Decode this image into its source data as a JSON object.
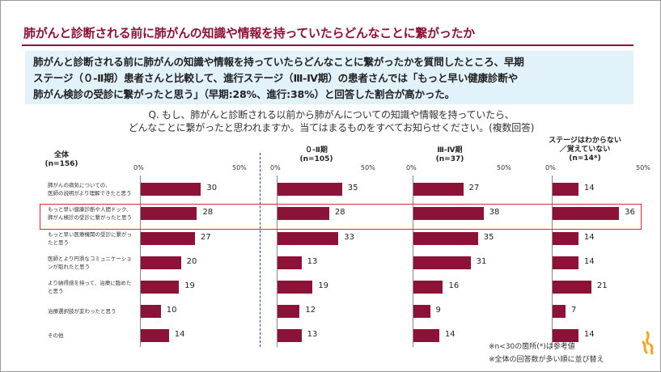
{
  "title": "肺がんと診断される前に肺がんの知識や情報を持っていたらどんなことに繋がったか",
  "summary": [
    "肺がんと診断される前に肺がんの知識や情報を持っていたらどんなことに繋がったかを質問したところ、早期",
    "ステージ（０-Ⅱ期）患者さんと比較して、進行ステージ（Ⅲ-Ⅳ期）の患者さんでは「もっと早い健康診断や",
    "肺がん検診の受診に繋がったと思う」（早期:28%、進行:38%）と回答した割合が高かった。"
  ],
  "question": [
    "Q. もし、肺がんと診断される以前から肺がんについての知識や情報を持っていたら、",
    "どんなことに繋がったと思われますか。当てはまるものをすべてお知らせください。(複数回答)"
  ],
  "notes": [
    "※n<30の箇所(*)は参考値",
    "※全体の回答数が多い順に並び替え"
  ],
  "colors": {
    "bar": "#8c1238",
    "title": "#8c1238",
    "summary_bg": "#e1f2fa",
    "highlight": "#d92b2b"
  },
  "chart_data": {
    "type": "bar",
    "orientation": "horizontal",
    "axis_ticks": [
      "0%",
      "50%"
    ],
    "xlim": [
      0,
      50
    ],
    "categories": [
      [
        "肺がんの病気についての、",
        "医師の説明がより理解できたと思う"
      ],
      [
        "もっと早い健康診断や人間ドック、",
        "肺がん検診の受診に繋がったと思う"
      ],
      [
        "もっと早い医療機関の受診に繋がっ",
        "たと思う"
      ],
      [
        "医師とより円滑なコミュニケーショ",
        "ンが取れたと思う"
      ],
      [
        "より納得感を持って、治療に臨めた",
        "と思う"
      ],
      [
        "治療選択肢が変わったと思う"
      ],
      [
        "その他"
      ]
    ],
    "highlighted_category": 1,
    "series": [
      {
        "name": [
          "全体",
          "(n=156)"
        ],
        "values": [
          30,
          28,
          27,
          20,
          19,
          10,
          14
        ]
      },
      {
        "name": [
          "０-Ⅱ期",
          "(n=105)"
        ],
        "values": [
          35,
          28,
          33,
          13,
          19,
          12,
          13
        ]
      },
      {
        "name": [
          "Ⅲ-Ⅳ期",
          "(n=37)"
        ],
        "values": [
          27,
          38,
          35,
          31,
          16,
          9,
          14
        ]
      },
      {
        "name": [
          "ステージはわからない",
          "／覚えていない",
          "(n=14*)"
        ],
        "values": [
          14,
          36,
          14,
          14,
          21,
          7,
          14
        ]
      }
    ]
  }
}
